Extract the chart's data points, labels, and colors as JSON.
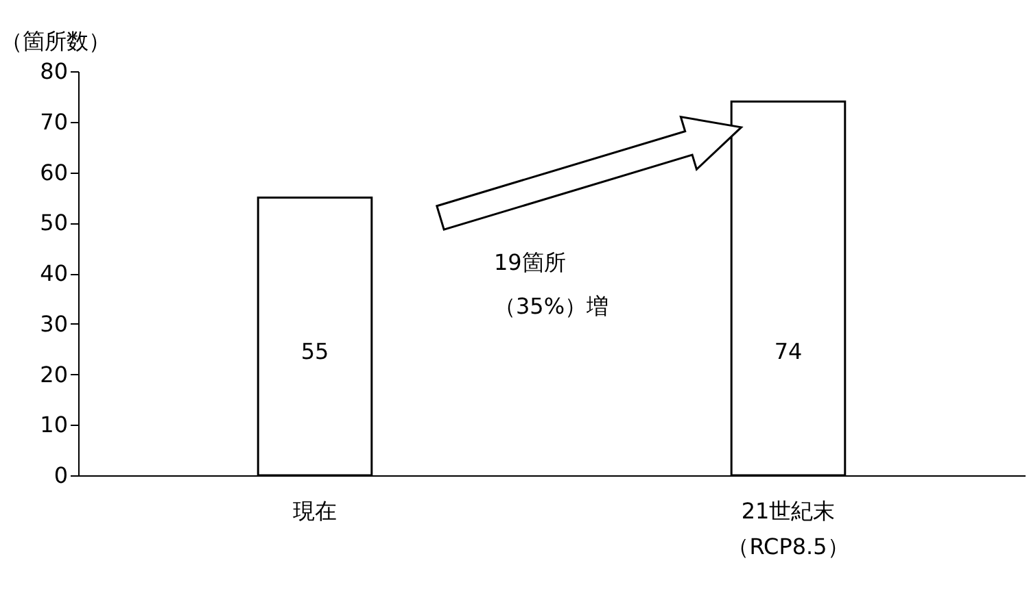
{
  "chart_data": {
    "type": "bar",
    "ylabel": "（箇所数）",
    "categories": [
      "現在",
      "21世紀末（RCP8.5）"
    ],
    "values": [
      55,
      74
    ],
    "color": "#ffffff",
    "data_labels": true,
    "ylim": [
      0,
      80
    ],
    "yticks": [
      0,
      10,
      20,
      30,
      40,
      50,
      60,
      70,
      80
    ],
    "grid": false,
    "annotations": [
      "19箇所（35%）増"
    ]
  }
}
